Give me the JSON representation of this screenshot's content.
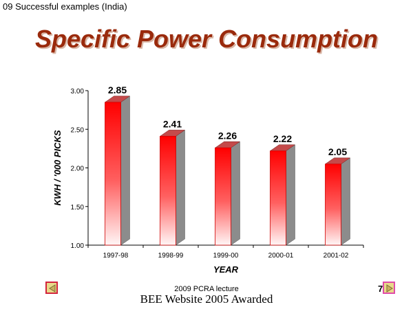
{
  "header": {
    "text": "09 Successful examples (India)"
  },
  "slide": {
    "title": "Specific Power Consumption"
  },
  "chart_data": {
    "type": "bar",
    "categories": [
      "1997-98",
      "1998-99",
      "1999-00",
      "2000-01",
      "2001-02"
    ],
    "values": [
      2.85,
      2.41,
      2.26,
      2.22,
      2.05
    ],
    "data_labels": [
      "2.85",
      "2.41",
      "2.26",
      "2.22",
      "2.05"
    ],
    "xlabel": "YEAR",
    "ylabel": "KWH /  '000 PICKS",
    "ylim": [
      1.0,
      3.0
    ],
    "yticks": [
      1.0,
      1.5,
      2.0,
      2.5,
      3.0
    ],
    "ytick_labels": [
      "1.00",
      "1.50",
      "2.00",
      "2.50",
      "3.00"
    ],
    "grid": false,
    "legend": "none",
    "bar_style": "3d",
    "colors": {
      "bar_front": "#ff0000",
      "bar_side": "#8c8c8c",
      "bar_top": "#c44a4a"
    }
  },
  "footer": {
    "lecture": "2009 PCRA lecture",
    "award": "BEE Website 2005 Awarded",
    "page_number": "7"
  },
  "nav": {
    "prev_icon": "triangle-left-icon",
    "next_icon": "triangle-right-icon"
  }
}
